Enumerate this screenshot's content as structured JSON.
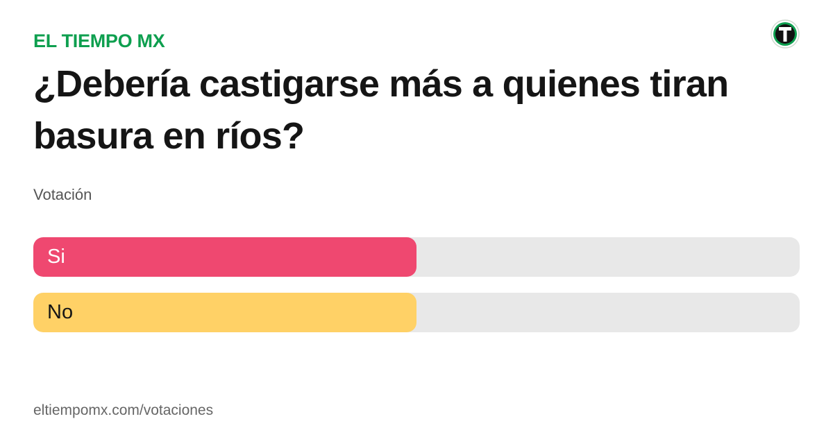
{
  "brand": "EL TIEMPO MX",
  "chart_data": {
    "type": "bar",
    "title": "¿Debería castigarse más a quienes tiran basura en ríos?",
    "subtitle": "Votación",
    "categories": [
      "Si",
      "No"
    ],
    "values": [
      50,
      50
    ],
    "colors": [
      "#ef4870",
      "#ffd166"
    ],
    "label_colors": [
      "#ffffff",
      "#151515"
    ],
    "xlim": [
      0,
      100
    ]
  },
  "footer": "eltiempomx.com/votaciones"
}
